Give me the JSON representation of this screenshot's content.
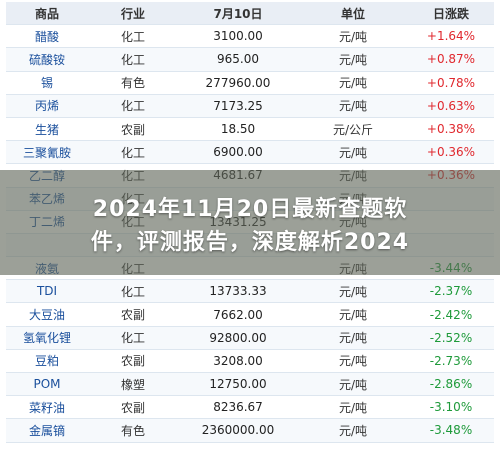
{
  "table": {
    "headers": [
      "商品",
      "行业",
      "7月10日",
      "单位",
      "日涨跌"
    ],
    "rows": [
      {
        "name": "醋酸",
        "sector": "化工",
        "price": "3100.00",
        "unit": "元/吨",
        "change": "+1.64%",
        "dir": "up"
      },
      {
        "name": "硫酸铵",
        "sector": "化工",
        "price": "965.00",
        "unit": "元/吨",
        "change": "+0.87%",
        "dir": "up"
      },
      {
        "name": "锡",
        "sector": "有色",
        "price": "277960.00",
        "unit": "元/吨",
        "change": "+0.78%",
        "dir": "up"
      },
      {
        "name": "丙烯",
        "sector": "化工",
        "price": "7173.25",
        "unit": "元/吨",
        "change": "+0.63%",
        "dir": "up"
      },
      {
        "name": "生猪",
        "sector": "农副",
        "price": "18.50",
        "unit": "元/公斤",
        "change": "+0.38%",
        "dir": "up"
      },
      {
        "name": "三聚氰胺",
        "sector": "化工",
        "price": "6900.00",
        "unit": "元/吨",
        "change": "+0.36%",
        "dir": "up"
      },
      {
        "name": "乙二醇",
        "sector": "化工",
        "price": "4681.67",
        "unit": "元/吨",
        "change": "+0.36%",
        "dir": "up"
      },
      {
        "name": "苯乙烯",
        "sector": "化工",
        "price": "",
        "unit": "元/吨",
        "change": "",
        "dir": "up"
      },
      {
        "name": "丁二烯",
        "sector": "化工",
        "price": "13431.25",
        "unit": "元/吨",
        "change": "",
        "dir": "up"
      },
      {
        "name": "",
        "sector": "",
        "price": "",
        "unit": "",
        "change": "",
        "dir": "up"
      },
      {
        "name": "液氨",
        "sector": "化工",
        "price": "",
        "unit": "元/吨",
        "change": "-3.44%",
        "dir": "down"
      },
      {
        "name": "TDI",
        "sector": "化工",
        "price": "13733.33",
        "unit": "元/吨",
        "change": "-2.37%",
        "dir": "down"
      },
      {
        "name": "大豆油",
        "sector": "农副",
        "price": "7662.00",
        "unit": "元/吨",
        "change": "-2.42%",
        "dir": "down"
      },
      {
        "name": "氢氧化锂",
        "sector": "化工",
        "price": "92800.00",
        "unit": "元/吨",
        "change": "-2.52%",
        "dir": "down"
      },
      {
        "name": "豆粕",
        "sector": "农副",
        "price": "3208.00",
        "unit": "元/吨",
        "change": "-2.73%",
        "dir": "down"
      },
      {
        "name": "POM",
        "sector": "橡塑",
        "price": "12750.00",
        "unit": "元/吨",
        "change": "-2.86%",
        "dir": "down"
      },
      {
        "name": "菜籽油",
        "sector": "农副",
        "price": "8236.67",
        "unit": "元/吨",
        "change": "-3.10%",
        "dir": "down"
      },
      {
        "name": "金属镝",
        "sector": "有色",
        "price": "2360000.00",
        "unit": "元/吨",
        "change": "-3.48%",
        "dir": "down"
      }
    ]
  },
  "overlay": {
    "line1": "2024年11月20日最新查题软",
    "line2": "件，评测报告，深度解析2024"
  },
  "colors": {
    "up": "#e0282e",
    "down": "#1e9a3a",
    "name": "#1a4f9c",
    "header_bg": "#e9eef5"
  }
}
